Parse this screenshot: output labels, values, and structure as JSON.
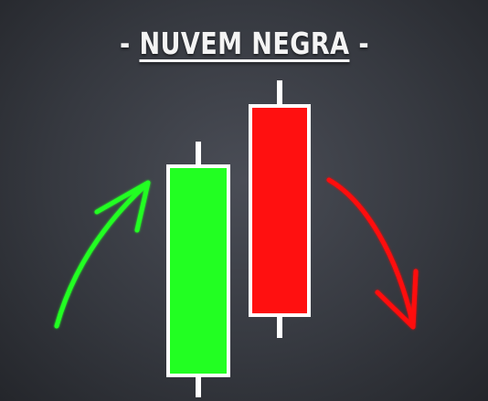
{
  "title": {
    "dash_left": "-",
    "text": "NUVEM NEGRA",
    "dash_right": "-"
  },
  "colors": {
    "bullish": "#22ff22",
    "bearish": "#ff1010",
    "outline": "#ffffff",
    "background": "#3a3d44"
  },
  "candles": [
    {
      "name": "bullish-candle",
      "color": "#22ff22"
    },
    {
      "name": "bearish-candle",
      "color": "#ff1010"
    }
  ],
  "arrows": [
    {
      "name": "up-arrow-icon",
      "color": "#22ff22",
      "direction": "up"
    },
    {
      "name": "down-arrow-icon",
      "color": "#ff1010",
      "direction": "down"
    }
  ]
}
